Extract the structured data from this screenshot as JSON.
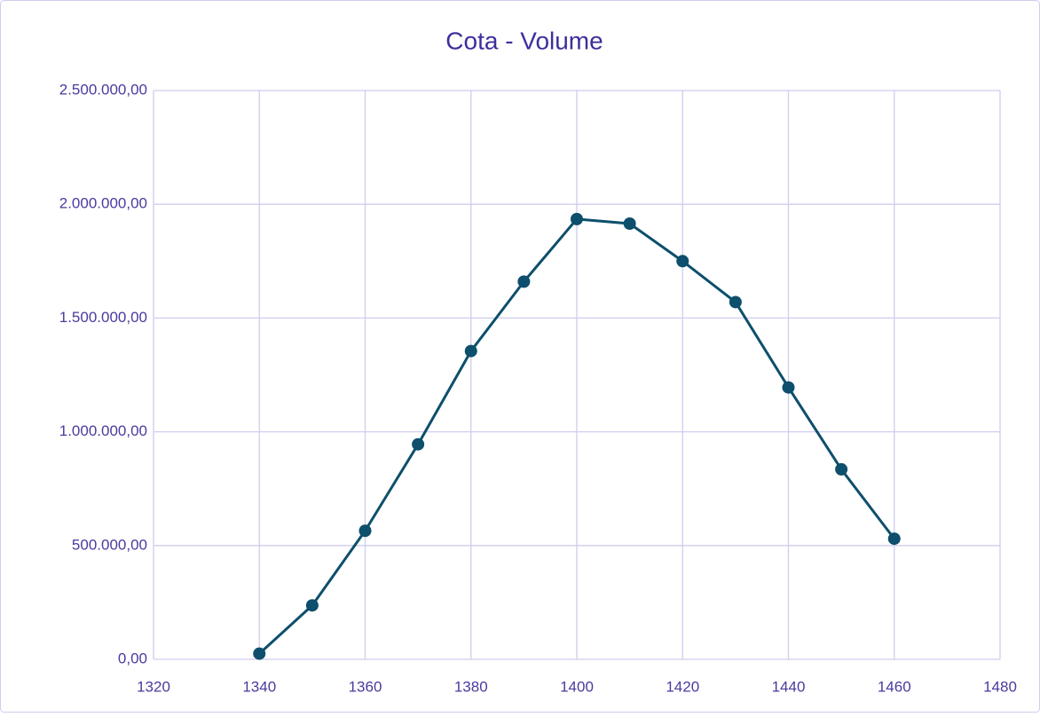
{
  "chart_data": {
    "type": "line",
    "title": "Cota - Volume",
    "x": [
      1340,
      1350,
      1360,
      1370,
      1380,
      1390,
      1400,
      1410,
      1420,
      1430,
      1440,
      1450,
      1460
    ],
    "values": [
      25000,
      237000,
      565000,
      945000,
      1355000,
      1660000,
      1935000,
      1915000,
      1750000,
      1570000,
      1195000,
      835000,
      530000
    ],
    "color": "#0d4f6c",
    "xlim": [
      1320,
      1480
    ],
    "xticks": [
      1320,
      1340,
      1360,
      1380,
      1400,
      1420,
      1440,
      1460,
      1480
    ],
    "ylim": [
      0,
      2500000
    ],
    "yticks": [
      {
        "value": 0,
        "label": "0,00"
      },
      {
        "value": 500000,
        "label": "500.000,00"
      },
      {
        "value": 1000000,
        "label": "1.000.000,00"
      },
      {
        "value": 1500000,
        "label": "1.500.000,00"
      },
      {
        "value": 2000000,
        "label": "2.000.000,00"
      },
      {
        "value": 2500000,
        "label": "2.500.000,00"
      }
    ],
    "grid": true,
    "markers": true
  }
}
